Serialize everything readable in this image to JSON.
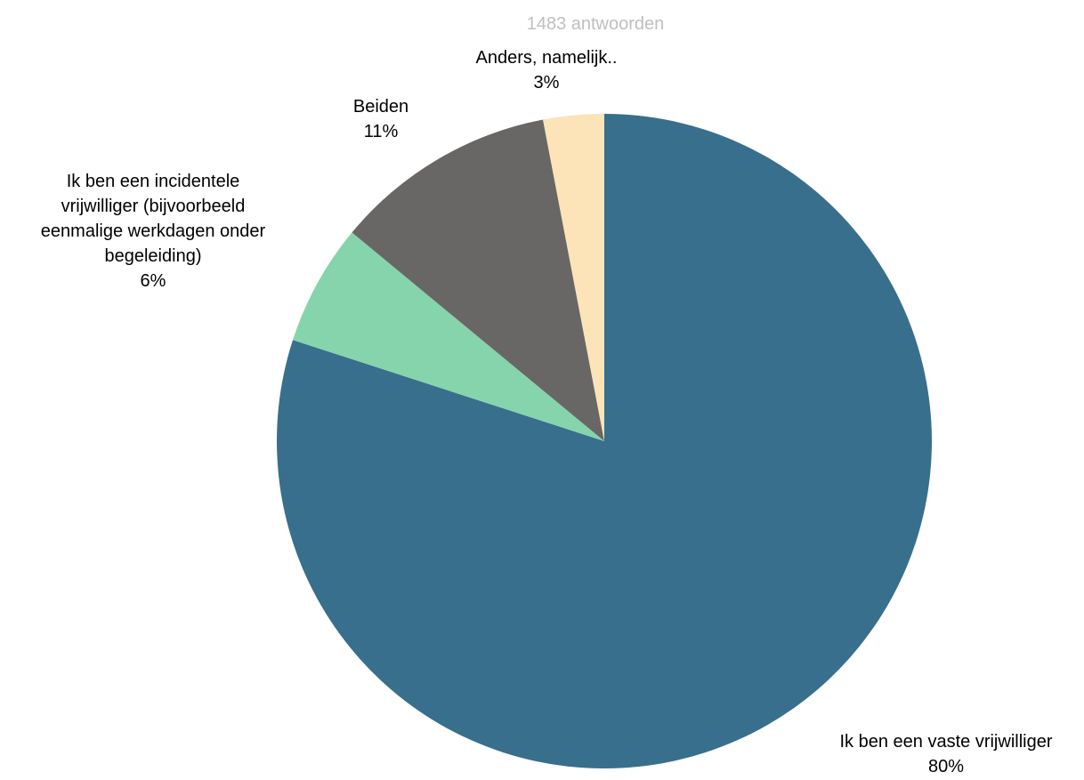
{
  "chart_data": {
    "type": "pie",
    "title": "1483 antwoorden",
    "start_angle_deg": 0,
    "direction": "clockwise",
    "slices": [
      {
        "label": "Ik ben een vaste vrijwilliger",
        "value": 80,
        "value_label": "80%",
        "color": "#386f8c"
      },
      {
        "label": "Ik ben een incidentele vrijwilliger (bijvoorbeeld eenmalige werkdagen onder begeleiding)",
        "value": 6,
        "value_label": "6%",
        "color": "#86d4ab"
      },
      {
        "label": "Beiden",
        "value": 11,
        "value_label": "11%",
        "color": "#686766"
      },
      {
        "label": "Anders, namelijk..",
        "value": 3,
        "value_label": "3%",
        "color": "#fce3b8"
      }
    ],
    "legend": "none",
    "colors": {
      "title": "#bfbfbf",
      "label": "#000000"
    }
  }
}
